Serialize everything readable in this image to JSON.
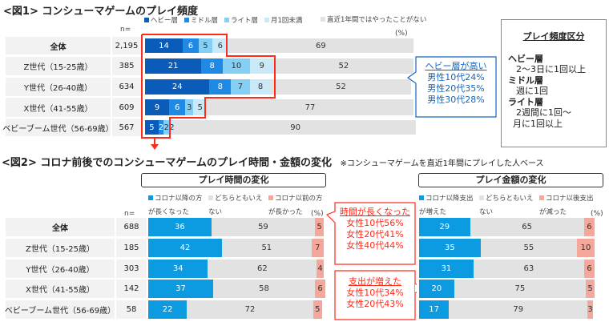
{
  "fig1": {
    "title": "<図1> コンシューマゲームのプレイ頻度",
    "n_label": "n=",
    "pct_label": "(%)"
  },
  "fig2": {
    "title": "<図2> コロナ前後でのコンシューマゲームのプレイ時間・金額の変化",
    "note": "※コンシューマゲームを直近1年間にプレイした人ベース",
    "n_label": "n=",
    "left_header": "プレイ時間の変化",
    "right_header": "プレイ金額の変化",
    "pct_label": "(%)"
  },
  "callout_blue": {
    "title": "ヘビー層が高い",
    "lines": [
      "男性10代24%",
      "男性20代35%",
      "男性30代28%"
    ]
  },
  "callout_time": {
    "title": "時間が長くなった",
    "lines": [
      "女性10代56%",
      "女性20代41%",
      "女性40代44%"
    ]
  },
  "callout_spend": {
    "title": "支出が増えた",
    "lines": [
      "女性10代34%",
      "女性20代43%"
    ]
  },
  "definitions": {
    "title": "プレイ頻度区分",
    "items": [
      {
        "term": "ヘビー層",
        "desc": [
          "2～3日に1回以上"
        ]
      },
      {
        "term": "ミドル層",
        "desc": [
          "週に1回"
        ]
      },
      {
        "term": "ライト層",
        "desc": [
          "2週間に1回～",
          "月に1回以上"
        ]
      }
    ]
  },
  "colors": {
    "heavy": "#0a5cb8",
    "middle": "#1f8ae6",
    "light": "#84cff5",
    "monthly": "#c9e8f8",
    "none": "#e2e2e2",
    "more": "#0c9ae0",
    "neutral": "#e2e2e2",
    "less": "#f5a79b",
    "highlight": "#ff2a1a",
    "callout_blue": "#1565c0"
  },
  "chart_data": [
    {
      "type": "bar",
      "stacked": true,
      "orientation": "horizontal",
      "title": "<図1> コンシューマゲームのプレイ頻度",
      "categories": [
        "全体",
        "Z世代（15-25歳）",
        "Y世代（26-40歳）",
        "X世代（41-55歳）",
        "ベビーブーム世代（56-69歳）"
      ],
      "n": [
        "2,195",
        "385",
        "634",
        "609",
        "567"
      ],
      "xlim": [
        0,
        100
      ],
      "series": [
        {
          "name": "ヘビー層",
          "values": [
            14,
            21,
            24,
            9,
            5
          ]
        },
        {
          "name": "ミドル層",
          "values": [
            6,
            8,
            8,
            6,
            2
          ]
        },
        {
          "name": "ライト層",
          "values": [
            5,
            10,
            7,
            3,
            2
          ]
        },
        {
          "name": "月1回未満",
          "values": [
            6,
            9,
            8,
            5,
            2
          ]
        },
        {
          "name": "直近1年間ではやったことがない",
          "values": [
            69,
            52,
            52,
            77,
            90
          ]
        }
      ]
    },
    {
      "type": "bar",
      "stacked": true,
      "orientation": "horizontal",
      "title": "プレイ時間の変化",
      "categories": [
        "全体",
        "Z世代（15-25歳）",
        "Y世代（26-40歳）",
        "X世代（41-55歳）",
        "ベビーブーム世代（56-69歳）"
      ],
      "n": [
        "688",
        "185",
        "303",
        "142",
        "58"
      ],
      "xlim": [
        0,
        100
      ],
      "series": [
        {
          "name": "コロナ以降の方が長くなった",
          "values": [
            36,
            42,
            34,
            37,
            22
          ]
        },
        {
          "name": "どちらともいえない",
          "values": [
            59,
            51,
            62,
            58,
            72
          ]
        },
        {
          "name": "コロナ以前の方が長かった",
          "values": [
            5,
            7,
            4,
            6,
            5
          ]
        }
      ]
    },
    {
      "type": "bar",
      "stacked": true,
      "orientation": "horizontal",
      "title": "プレイ金額の変化",
      "xlim": [
        0,
        100
      ],
      "series": [
        {
          "name": "コロナ以降支出が増えた",
          "values": [
            29,
            35,
            31,
            20,
            17
          ]
        },
        {
          "name": "どちらともいえない",
          "values": [
            65,
            55,
            63,
            75,
            79
          ]
        },
        {
          "name": "コロナ以後支出が減った",
          "values": [
            6,
            10,
            6,
            5,
            3
          ]
        }
      ]
    }
  ]
}
